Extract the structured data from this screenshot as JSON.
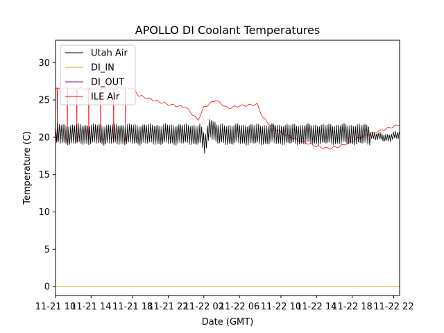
{
  "chart_data": {
    "type": "line",
    "title": "APOLLO DI Coolant Temperatures",
    "xlabel": "Date (GMT)",
    "ylabel": "Temperature (C)",
    "xlim": [
      0,
      29
    ],
    "ylim": [
      -1.2,
      33
    ],
    "x_unit": "hours since 11-21 09:00 GMT",
    "xticks": [
      {
        "value": 0,
        "label": "11-21 10"
      },
      {
        "value": 3,
        "label": "11-21 14"
      },
      {
        "value": 6.5,
        "label": "11-21 18"
      },
      {
        "value": 9.5,
        "label": "11-21 22"
      },
      {
        "value": 12.5,
        "label": "11-22 02"
      },
      {
        "value": 15.5,
        "label": "11-22 06"
      },
      {
        "value": 19,
        "label": "11-22 10"
      },
      {
        "value": 22,
        "label": "11-22 14"
      },
      {
        "value": 25,
        "label": "11-22 18"
      },
      {
        "value": 28.5,
        "label": "11-22 22"
      }
    ],
    "yticks": [
      0,
      5,
      10,
      15,
      20,
      25,
      30
    ],
    "legend_position": "top-left",
    "series": [
      {
        "name": "Utah Air",
        "color": "#000000",
        "style": "rapid-oscillation",
        "low": 19.2,
        "high": 21.7,
        "oscillation_period": 0.16,
        "x": [
          0,
          12.2,
          12.6,
          13.0,
          13.6,
          26.5,
          27.2,
          28.0,
          28.6,
          29
        ],
        "y": [
          20.4,
          20.4,
          19.0,
          21.5,
          20.4,
          20.4,
          20.0,
          20.0,
          20.2,
          20.2
        ]
      },
      {
        "name": "DI_IN",
        "color": "#d4b000",
        "x": [
          0,
          29
        ],
        "y": [
          0,
          0
        ]
      },
      {
        "name": "DI_OUT",
        "color": "#800080",
        "x": [
          0,
          29
        ],
        "y": [
          0,
          0
        ]
      },
      {
        "name": "ILE Air",
        "color": "#ff0000",
        "style": "baseline-with-dips",
        "x": [
          0,
          1,
          3,
          5.5,
          6.5,
          7,
          9.5,
          11,
          12.0,
          12.5,
          13.5,
          14.5,
          15.5,
          17,
          17.5,
          18,
          19,
          20,
          21,
          22,
          23,
          24,
          25,
          26,
          27,
          28,
          29
        ],
        "y": [
          26.5,
          26.5,
          26.5,
          26.5,
          26.6,
          25.6,
          24.4,
          24.0,
          22.3,
          24.0,
          25.0,
          23.9,
          24.2,
          24.4,
          22.6,
          21.8,
          20.6,
          19.9,
          19.3,
          18.8,
          18.5,
          18.8,
          19.5,
          20.2,
          20.7,
          21.2,
          21.7
        ],
        "dips": [
          {
            "x": 0.15,
            "y": 19.5
          },
          {
            "x": 1.0,
            "y": 19.3
          },
          {
            "x": 1.8,
            "y": 19.3
          },
          {
            "x": 2.8,
            "y": 19.5
          },
          {
            "x": 3.8,
            "y": 19.3
          },
          {
            "x": 4.9,
            "y": 19.2
          },
          {
            "x": 5.9,
            "y": 19.5
          }
        ]
      }
    ]
  }
}
